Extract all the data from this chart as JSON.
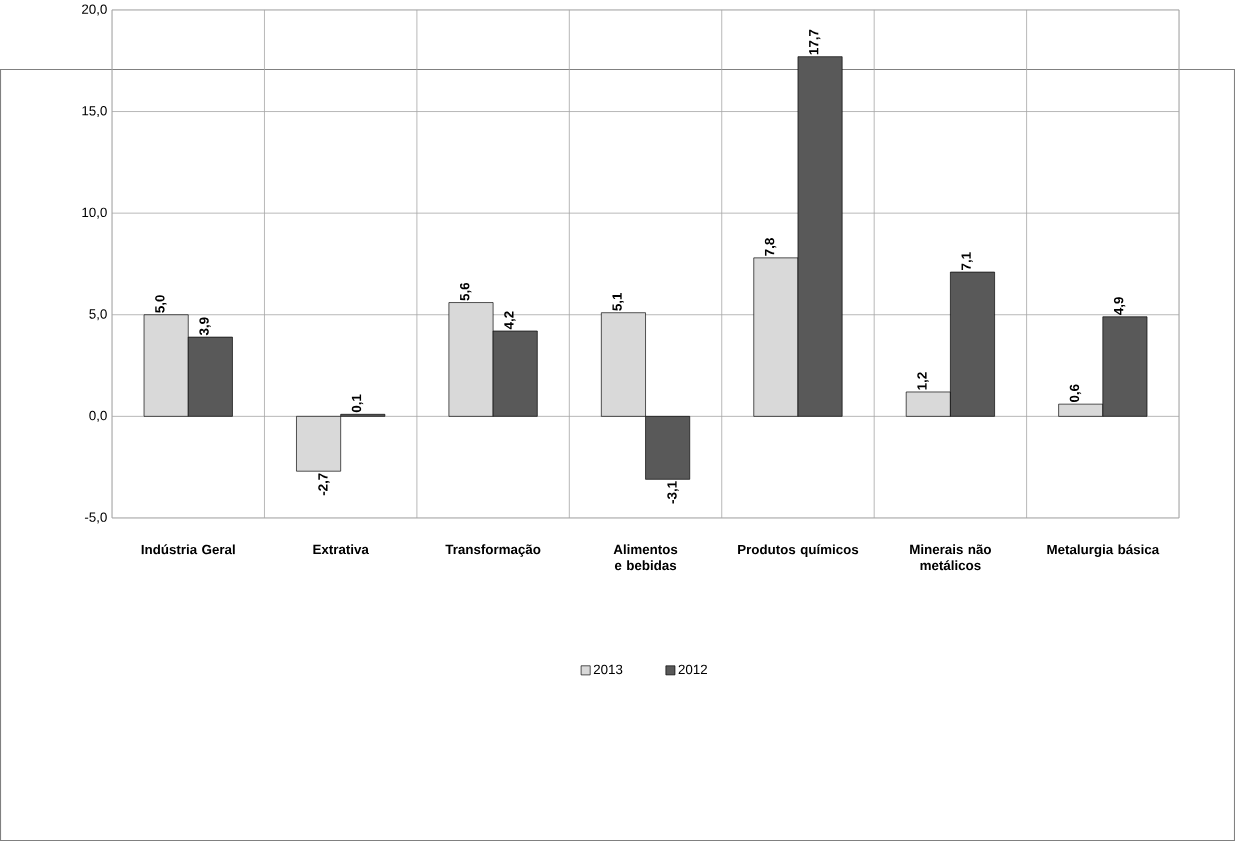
{
  "chart_data": {
    "type": "bar",
    "categories": [
      "Indústria Geral",
      "Extrativa",
      "Transformação",
      "Alimentos e bebidas",
      "Produtos químicos",
      "Minerais não metálicos",
      "Metalurgia básica"
    ],
    "series": [
      {
        "name": "2013",
        "color": "#d9d9d9",
        "values": [
          5.0,
          -2.7,
          5.6,
          5.1,
          7.8,
          1.2,
          0.6
        ],
        "value_labels": [
          "5,0",
          "-2,7",
          "5,6",
          "5,1",
          "7,8",
          "1,2",
          "0,6"
        ]
      },
      {
        "name": "2012",
        "color": "#595959",
        "values": [
          3.9,
          0.1,
          4.2,
          -3.1,
          17.7,
          7.1,
          4.9
        ],
        "value_labels": [
          "3,9",
          "0,1",
          "4,2",
          "-3,1",
          "17,7",
          "7,1",
          "4,9"
        ]
      }
    ],
    "ylim": [
      -5,
      20
    ],
    "yticks": [
      {
        "value": -5,
        "label": "-5,0"
      },
      {
        "value": 0,
        "label": "0,0"
      },
      {
        "value": 5,
        "label": "5,0"
      },
      {
        "value": 10,
        "label": "10,0"
      },
      {
        "value": 15,
        "label": "15,0"
      },
      {
        "value": 20,
        "label": "20,0"
      }
    ],
    "grid": true,
    "legend": "bottom"
  }
}
